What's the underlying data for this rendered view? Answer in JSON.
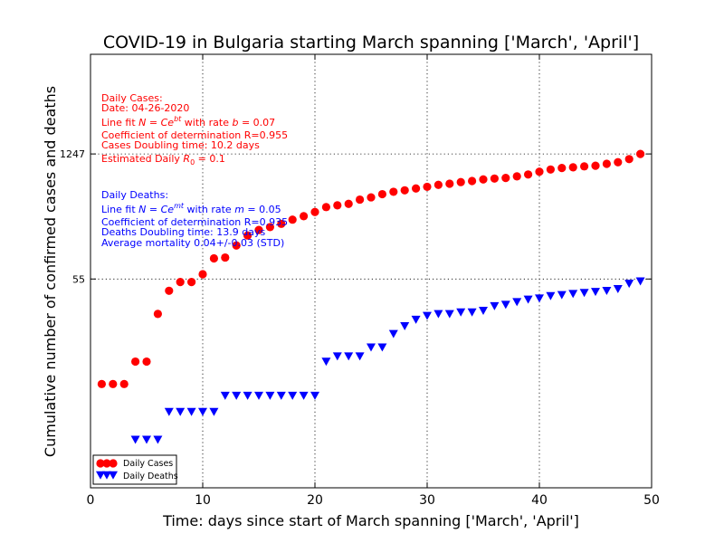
{
  "chart_data": {
    "type": "scatter",
    "title": "COVID-19 in Bulgaria starting March spanning ['March', 'April']",
    "xlabel": "Time: days since start of March spanning ['March', 'April']",
    "ylabel": "Cumulative number of confirmed cases and deaths",
    "xlim": [
      0,
      50
    ],
    "y_scale": "log",
    "ylim": [
      0.3,
      15000
    ],
    "x_ticks": [
      0,
      10,
      20,
      30,
      40,
      50
    ],
    "y_ticks": [
      55,
      1247
    ],
    "grid": true,
    "legend_position": "lower-left",
    "series": [
      {
        "name": "Daily Cases",
        "color": "#ff0000",
        "marker": "circle",
        "points": [
          [
            1,
            4
          ],
          [
            2,
            4
          ],
          [
            3,
            4
          ],
          [
            4,
            7
          ],
          [
            5,
            7
          ],
          [
            6,
            23
          ],
          [
            7,
            41
          ],
          [
            8,
            51
          ],
          [
            9,
            51
          ],
          [
            10,
            62
          ],
          [
            11,
            92
          ],
          [
            12,
            94
          ],
          [
            13,
            127
          ],
          [
            14,
            163
          ],
          [
            15,
            187
          ],
          [
            16,
            201
          ],
          [
            17,
            218
          ],
          [
            18,
            242
          ],
          [
            19,
            264
          ],
          [
            20,
            293
          ],
          [
            21,
            331
          ],
          [
            22,
            346
          ],
          [
            23,
            359
          ],
          [
            24,
            399
          ],
          [
            25,
            422
          ],
          [
            26,
            457
          ],
          [
            27,
            485
          ],
          [
            28,
            503
          ],
          [
            29,
            527
          ],
          [
            30,
            549
          ],
          [
            31,
            577
          ],
          [
            32,
            593
          ],
          [
            33,
            618
          ],
          [
            34,
            635
          ],
          [
            35,
            661
          ],
          [
            36,
            675
          ],
          [
            37,
            685
          ],
          [
            38,
            713
          ],
          [
            39,
            747
          ],
          [
            40,
            800
          ],
          [
            41,
            846
          ],
          [
            42,
            878
          ],
          [
            43,
            894
          ],
          [
            44,
            915
          ],
          [
            45,
            929
          ],
          [
            46,
            975
          ],
          [
            47,
            1015
          ],
          [
            48,
            1097
          ],
          [
            49,
            1247
          ]
        ]
      },
      {
        "name": "Daily Deaths",
        "color": "#0000ff",
        "marker": "triangle-down",
        "points": [
          [
            4,
            1
          ],
          [
            5,
            1
          ],
          [
            6,
            1
          ],
          [
            7,
            2
          ],
          [
            8,
            2
          ],
          [
            9,
            2
          ],
          [
            10,
            2
          ],
          [
            11,
            2
          ],
          [
            12,
            3
          ],
          [
            13,
            3
          ],
          [
            14,
            3
          ],
          [
            15,
            3
          ],
          [
            16,
            3
          ],
          [
            17,
            3
          ],
          [
            18,
            3
          ],
          [
            19,
            3
          ],
          [
            20,
            3
          ],
          [
            21,
            7
          ],
          [
            22,
            8
          ],
          [
            23,
            8
          ],
          [
            24,
            8
          ],
          [
            25,
            10
          ],
          [
            26,
            10
          ],
          [
            27,
            14
          ],
          [
            28,
            17
          ],
          [
            29,
            20
          ],
          [
            30,
            22
          ],
          [
            31,
            23
          ],
          [
            32,
            23
          ],
          [
            33,
            24
          ],
          [
            34,
            24
          ],
          [
            35,
            25
          ],
          [
            36,
            28
          ],
          [
            37,
            29
          ],
          [
            38,
            31
          ],
          [
            39,
            33
          ],
          [
            40,
            34
          ],
          [
            41,
            36
          ],
          [
            42,
            37
          ],
          [
            43,
            38
          ],
          [
            44,
            39
          ],
          [
            45,
            40
          ],
          [
            46,
            41
          ],
          [
            47,
            43
          ],
          [
            48,
            49
          ],
          [
            49,
            52
          ]
        ]
      }
    ],
    "annotations": {
      "cases": {
        "lines": [
          "Daily Cases:",
          "Date: 04-26-2020",
          "Line fit N=Ce^{bt} with rate b=0.07",
          "Coefficient of determination R=0.955",
          "Cases Doubling time: 10.2 days",
          "Estimated Daily R0=0.1"
        ]
      },
      "deaths": {
        "lines": [
          "Daily Deaths:",
          "Line fit N=Ce^{mt} with rate m=0.05",
          "Coefficient of determination R=0.935",
          "Deaths Doubling time: 13.9 days",
          "Average mortality 0.04+/-0.03 (STD)"
        ]
      }
    }
  }
}
